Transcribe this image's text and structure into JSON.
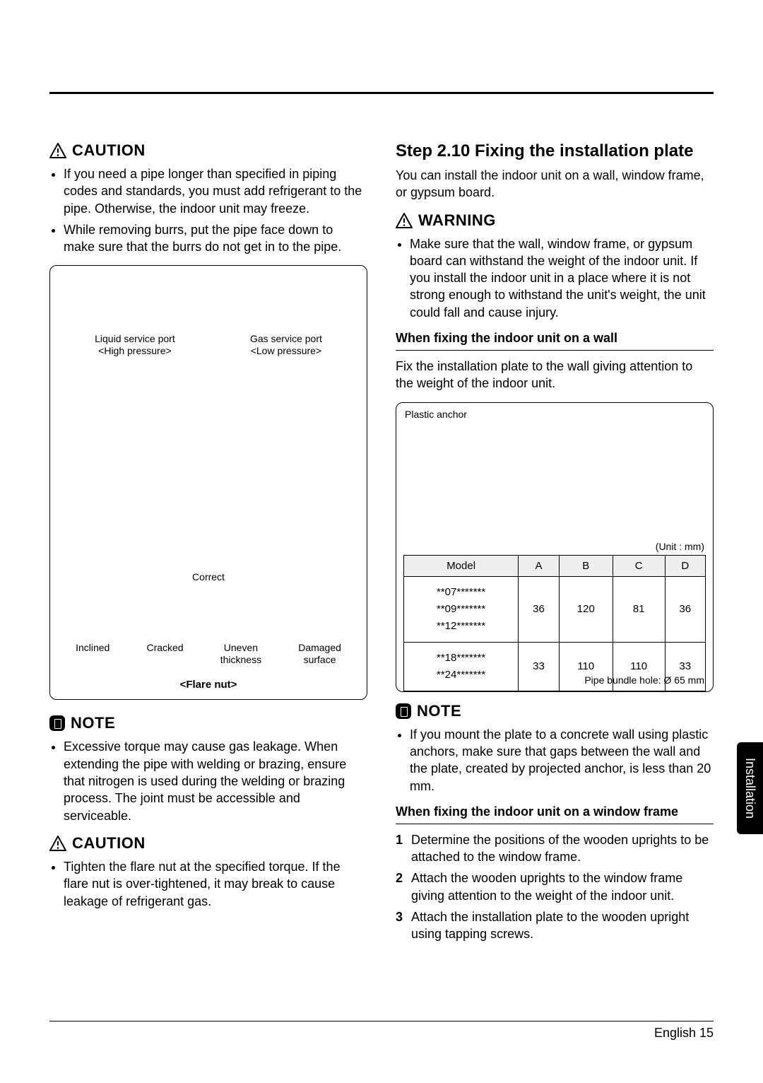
{
  "left": {
    "caution1": "CAUTION",
    "caution1_items": [
      "If you need a pipe longer than specified in piping codes and standards, you must add refrigerant to the pipe. Otherwise, the indoor unit may freeze.",
      "While removing burrs, put the pipe face down to make sure that the burrs do not get in to the pipe."
    ],
    "fig": {
      "liquid_port": "Liquid service port",
      "liquid_sub": "<High pressure>",
      "gas_port": "Gas service port",
      "gas_sub": "<Low pressure>",
      "correct": "Correct",
      "inclined": "Inclined",
      "cracked": "Cracked",
      "uneven": "Uneven",
      "uneven2": "thickness",
      "damaged": "Damaged",
      "damaged2": "surface",
      "flare_title": "<Flare nut>"
    },
    "note": "NOTE",
    "note_items": [
      "Excessive torque may cause gas leakage. When extending the pipe with welding or brazing, ensure that nitrogen is used during the welding or brazing process. The joint must be accessible and serviceable."
    ],
    "caution2": "CAUTION",
    "caution2_items": [
      "Tighten the flare nut at the specified torque. If the flare nut is over-tightened, it may break to cause leakage of refrigerant gas."
    ]
  },
  "right": {
    "step_title": "Step 2.10  Fixing the installation plate",
    "intro": "You can install the indoor unit on a wall, window frame, or gypsum board.",
    "warning": "WARNING",
    "warning_items": [
      "Make sure that the wall, window frame, or gypsum board can withstand the weight of the indoor unit. If you install the indoor unit in a place where it is not strong enough to withstand the unit's weight, the unit could fall and cause injury."
    ],
    "sub1": "When fixing the indoor unit on a wall",
    "sub1_text": "Fix the installation plate to the wall giving attention to the weight of the indoor unit.",
    "fig2": {
      "anchor": "Plastic anchor",
      "unit": "(Unit : mm)",
      "pipe_note": "Pipe bundle hole: Ø 65 mm",
      "headers": [
        "Model",
        "A",
        "B",
        "C",
        "D"
      ],
      "row1_models": "**07*******\n**09*******\n**12*******",
      "row1": [
        "36",
        "120",
        "81",
        "36"
      ],
      "row2_models": "**18*******\n**24*******",
      "row2": [
        "33",
        "110",
        "110",
        "33"
      ]
    },
    "note": "NOTE",
    "note_items": [
      "If you mount the plate to a concrete wall using plastic anchors, make sure that gaps between the wall and the plate, created by projected anchor, is less than 20 mm."
    ],
    "sub2": "When fixing the indoor unit on a window frame",
    "steps": [
      "Determine the positions of the wooden uprights to be attached to the window frame.",
      "Attach the wooden uprights to the window frame giving attention to the weight of the indoor unit.",
      "Attach the installation plate to the wooden upright using tapping screws."
    ]
  },
  "side_tab": "Installation",
  "footer": "English  15"
}
